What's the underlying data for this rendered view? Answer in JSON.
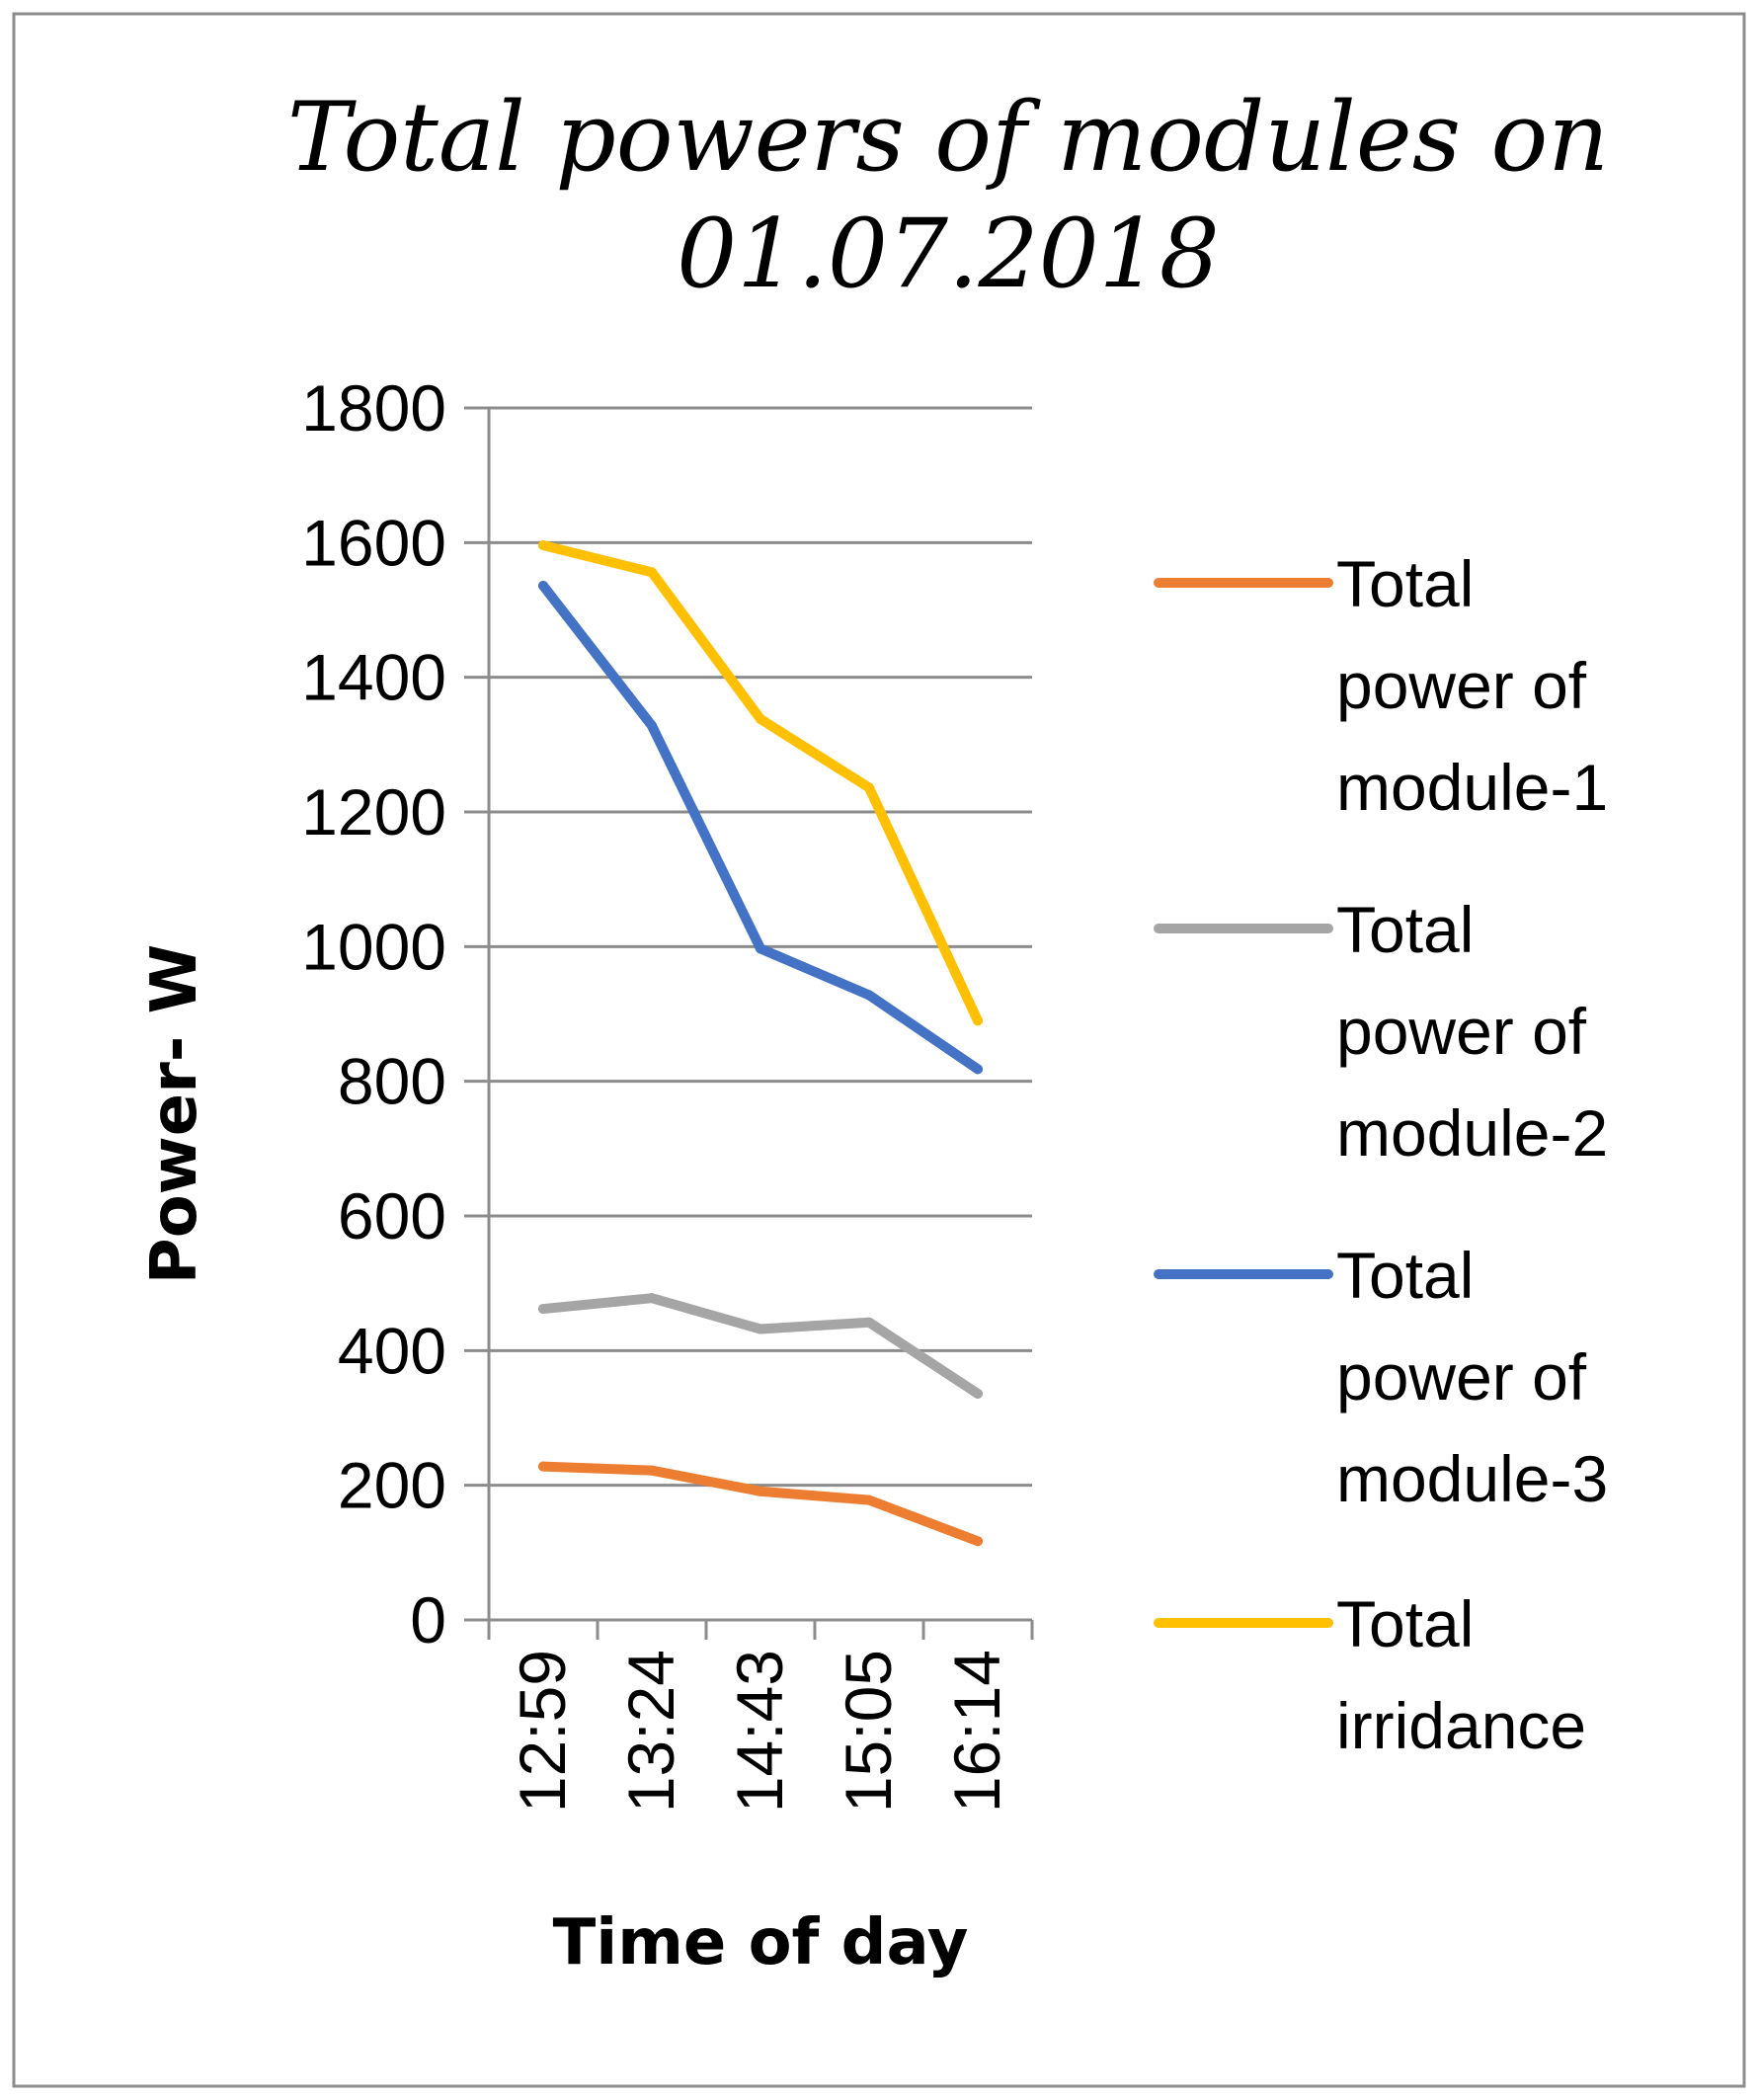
{
  "chart_data": {
    "type": "line",
    "title_lines": [
      "Total powers of modules on",
      "01.07.2018"
    ],
    "xlabel": "Time of day",
    "ylabel": "Power-  W",
    "categories": [
      "12:59",
      "13:24",
      "14:43",
      "15:05",
      "16:14"
    ],
    "ylim": [
      0,
      1800
    ],
    "ytick_step": 200,
    "yticks": [
      "0",
      "200",
      "400",
      "600",
      "800",
      "1000",
      "1200",
      "1400",
      "1600",
      "1800"
    ],
    "grid": true,
    "legend_position": "right",
    "series": [
      {
        "name": "Total power of module-1",
        "legend_lines": [
          "Total",
          "power of",
          "module-1"
        ],
        "color": "#ED7D31",
        "values": [
          228,
          222,
          191,
          178,
          117
        ]
      },
      {
        "name": "Total power of module-2",
        "legend_lines": [
          "Total",
          "power of",
          "module-2"
        ],
        "color": "#A5A5A5",
        "values": [
          462,
          478,
          432,
          442,
          336
        ]
      },
      {
        "name": "Total power of module-3",
        "legend_lines": [
          "Total",
          "power of",
          "module-3"
        ],
        "color": "#4472C4",
        "values": [
          1536,
          1328,
          997,
          928,
          818
        ]
      },
      {
        "name": "Total irridance",
        "legend_lines": [
          "Total",
          "irridance"
        ],
        "color": "#FFC000",
        "values": [
          1596,
          1556,
          1338,
          1236,
          890
        ]
      }
    ]
  }
}
